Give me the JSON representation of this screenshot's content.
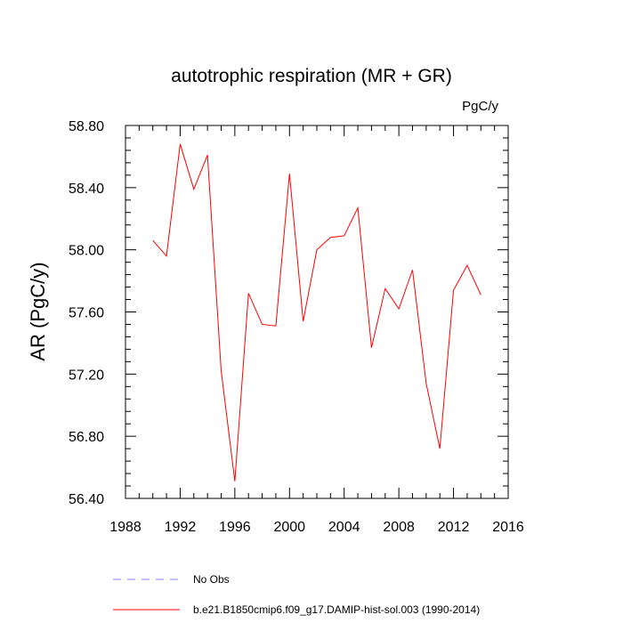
{
  "chart_data": {
    "type": "line",
    "title": "autotrophic respiration (MR + GR)",
    "units": "PgC/y",
    "xlabel": "",
    "ylabel": "AR  (PgC/y)",
    "xlim": [
      1988,
      2016
    ],
    "ylim": [
      56.4,
      58.8
    ],
    "xticks": [
      1988,
      1992,
      1996,
      2000,
      2004,
      2008,
      2012,
      2016
    ],
    "xtick_labels": [
      "1988",
      "1992",
      "1996",
      "2000",
      "2004",
      "2008",
      "2012",
      "2016"
    ],
    "yticks": [
      56.4,
      56.8,
      57.2,
      57.6,
      58.0,
      58.4,
      58.8
    ],
    "ytick_labels": [
      "56.40",
      "56.80",
      "57.20",
      "57.60",
      "58.00",
      "58.40",
      "58.80"
    ],
    "grid": false,
    "legend_position": "bottom-left",
    "series": [
      {
        "name": "b.e21.B1850cmip6.f09_g17.DAMIP-hist-sol.003 (1990-2014)",
        "color": "#ff0000",
        "line_style": "solid",
        "x": [
          1990,
          1991,
          1992,
          1993,
          1994,
          1995,
          1996,
          1997,
          1998,
          1999,
          2000,
          2001,
          2002,
          2003,
          2004,
          2005,
          2006,
          2007,
          2008,
          2009,
          2010,
          2011,
          2012,
          2013,
          2014
        ],
        "y": [
          58.06,
          57.96,
          58.68,
          58.39,
          58.61,
          57.22,
          56.51,
          57.72,
          57.52,
          57.51,
          58.49,
          57.54,
          58.0,
          58.08,
          58.09,
          58.27,
          57.37,
          57.75,
          57.62,
          57.87,
          57.14,
          56.72,
          57.74,
          57.9,
          57.71
        ]
      }
    ],
    "legend": [
      {
        "label": "No Obs",
        "color": "#8080ff",
        "line_style": "dashed"
      },
      {
        "label": "b.e21.B1850cmip6.f09_g17.DAMIP-hist-sol.003 (1990-2014)",
        "color": "#ff0000",
        "line_style": "solid"
      }
    ]
  }
}
